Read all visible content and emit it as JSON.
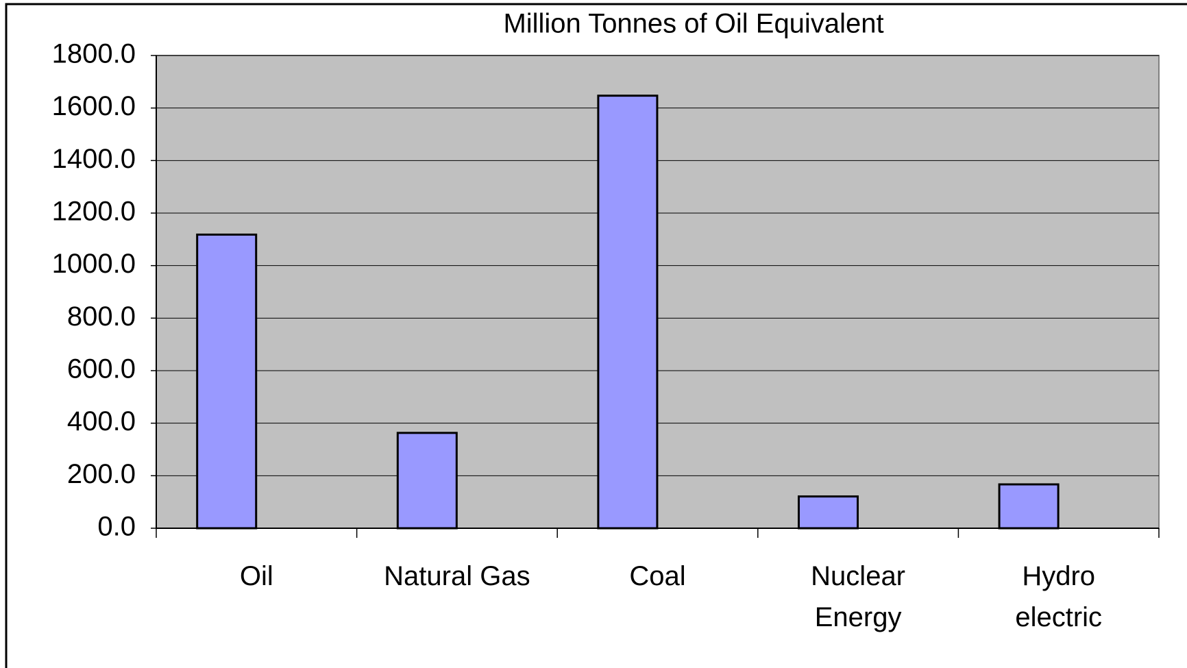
{
  "chart_data": {
    "type": "bar",
    "title": "Million Tonnes of Oil Equivalent",
    "categories": [
      "Oil",
      "Natural Gas",
      "Coal",
      "Nuclear\nEnergy",
      "Hydro\nelectric"
    ],
    "values": [
      1118,
      363,
      1647,
      121,
      167
    ],
    "color": "#9999ff",
    "ylim": [
      0,
      1800
    ],
    "yticks": [
      {
        "value": 0,
        "label": "0.0"
      },
      {
        "value": 200,
        "label": "200.0"
      },
      {
        "value": 400,
        "label": "400.0"
      },
      {
        "value": 600,
        "label": "600.0"
      },
      {
        "value": 800,
        "label": "800.0"
      },
      {
        "value": 1000,
        "label": "1000.0"
      },
      {
        "value": 1200,
        "label": "1200.0"
      },
      {
        "value": 1400,
        "label": "1400.0"
      },
      {
        "value": 1600,
        "label": "1600.0"
      },
      {
        "value": 1800,
        "label": "1800.0"
      }
    ],
    "grid": true
  }
}
